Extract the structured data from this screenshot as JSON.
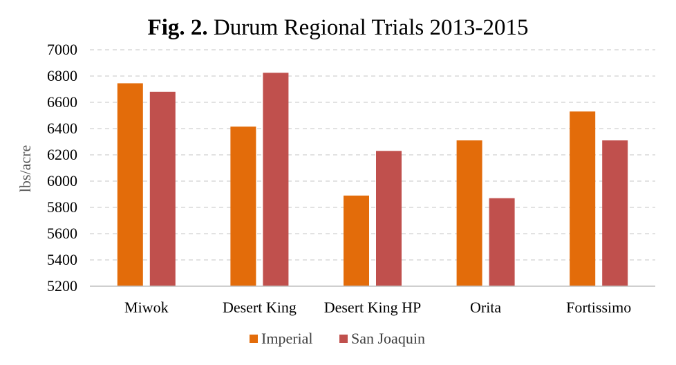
{
  "chart_data": {
    "type": "bar",
    "title_prefix": "Fig. 2.",
    "title_rest": "Durum Regional Trials 2013-2015",
    "xlabel": "",
    "ylabel": "lbs/acre",
    "ylim": [
      5200,
      7000
    ],
    "yticks": [
      "5200",
      "5400",
      "5600",
      "5800",
      "6000",
      "6200",
      "6400",
      "6600",
      "6800",
      "7000"
    ],
    "grid": true,
    "legend_position": "bottom",
    "categories": [
      "Miwok",
      "Desert King",
      "Desert King HP",
      "Orita",
      "Fortissimo"
    ],
    "series": [
      {
        "name": "Imperial",
        "color": "#e36c0a",
        "values": [
          6745,
          6415,
          5890,
          6310,
          6530
        ]
      },
      {
        "name": "San Joaquin",
        "color": "#c0504d",
        "values": [
          6680,
          6825,
          6230,
          5870,
          6310
        ]
      }
    ]
  }
}
